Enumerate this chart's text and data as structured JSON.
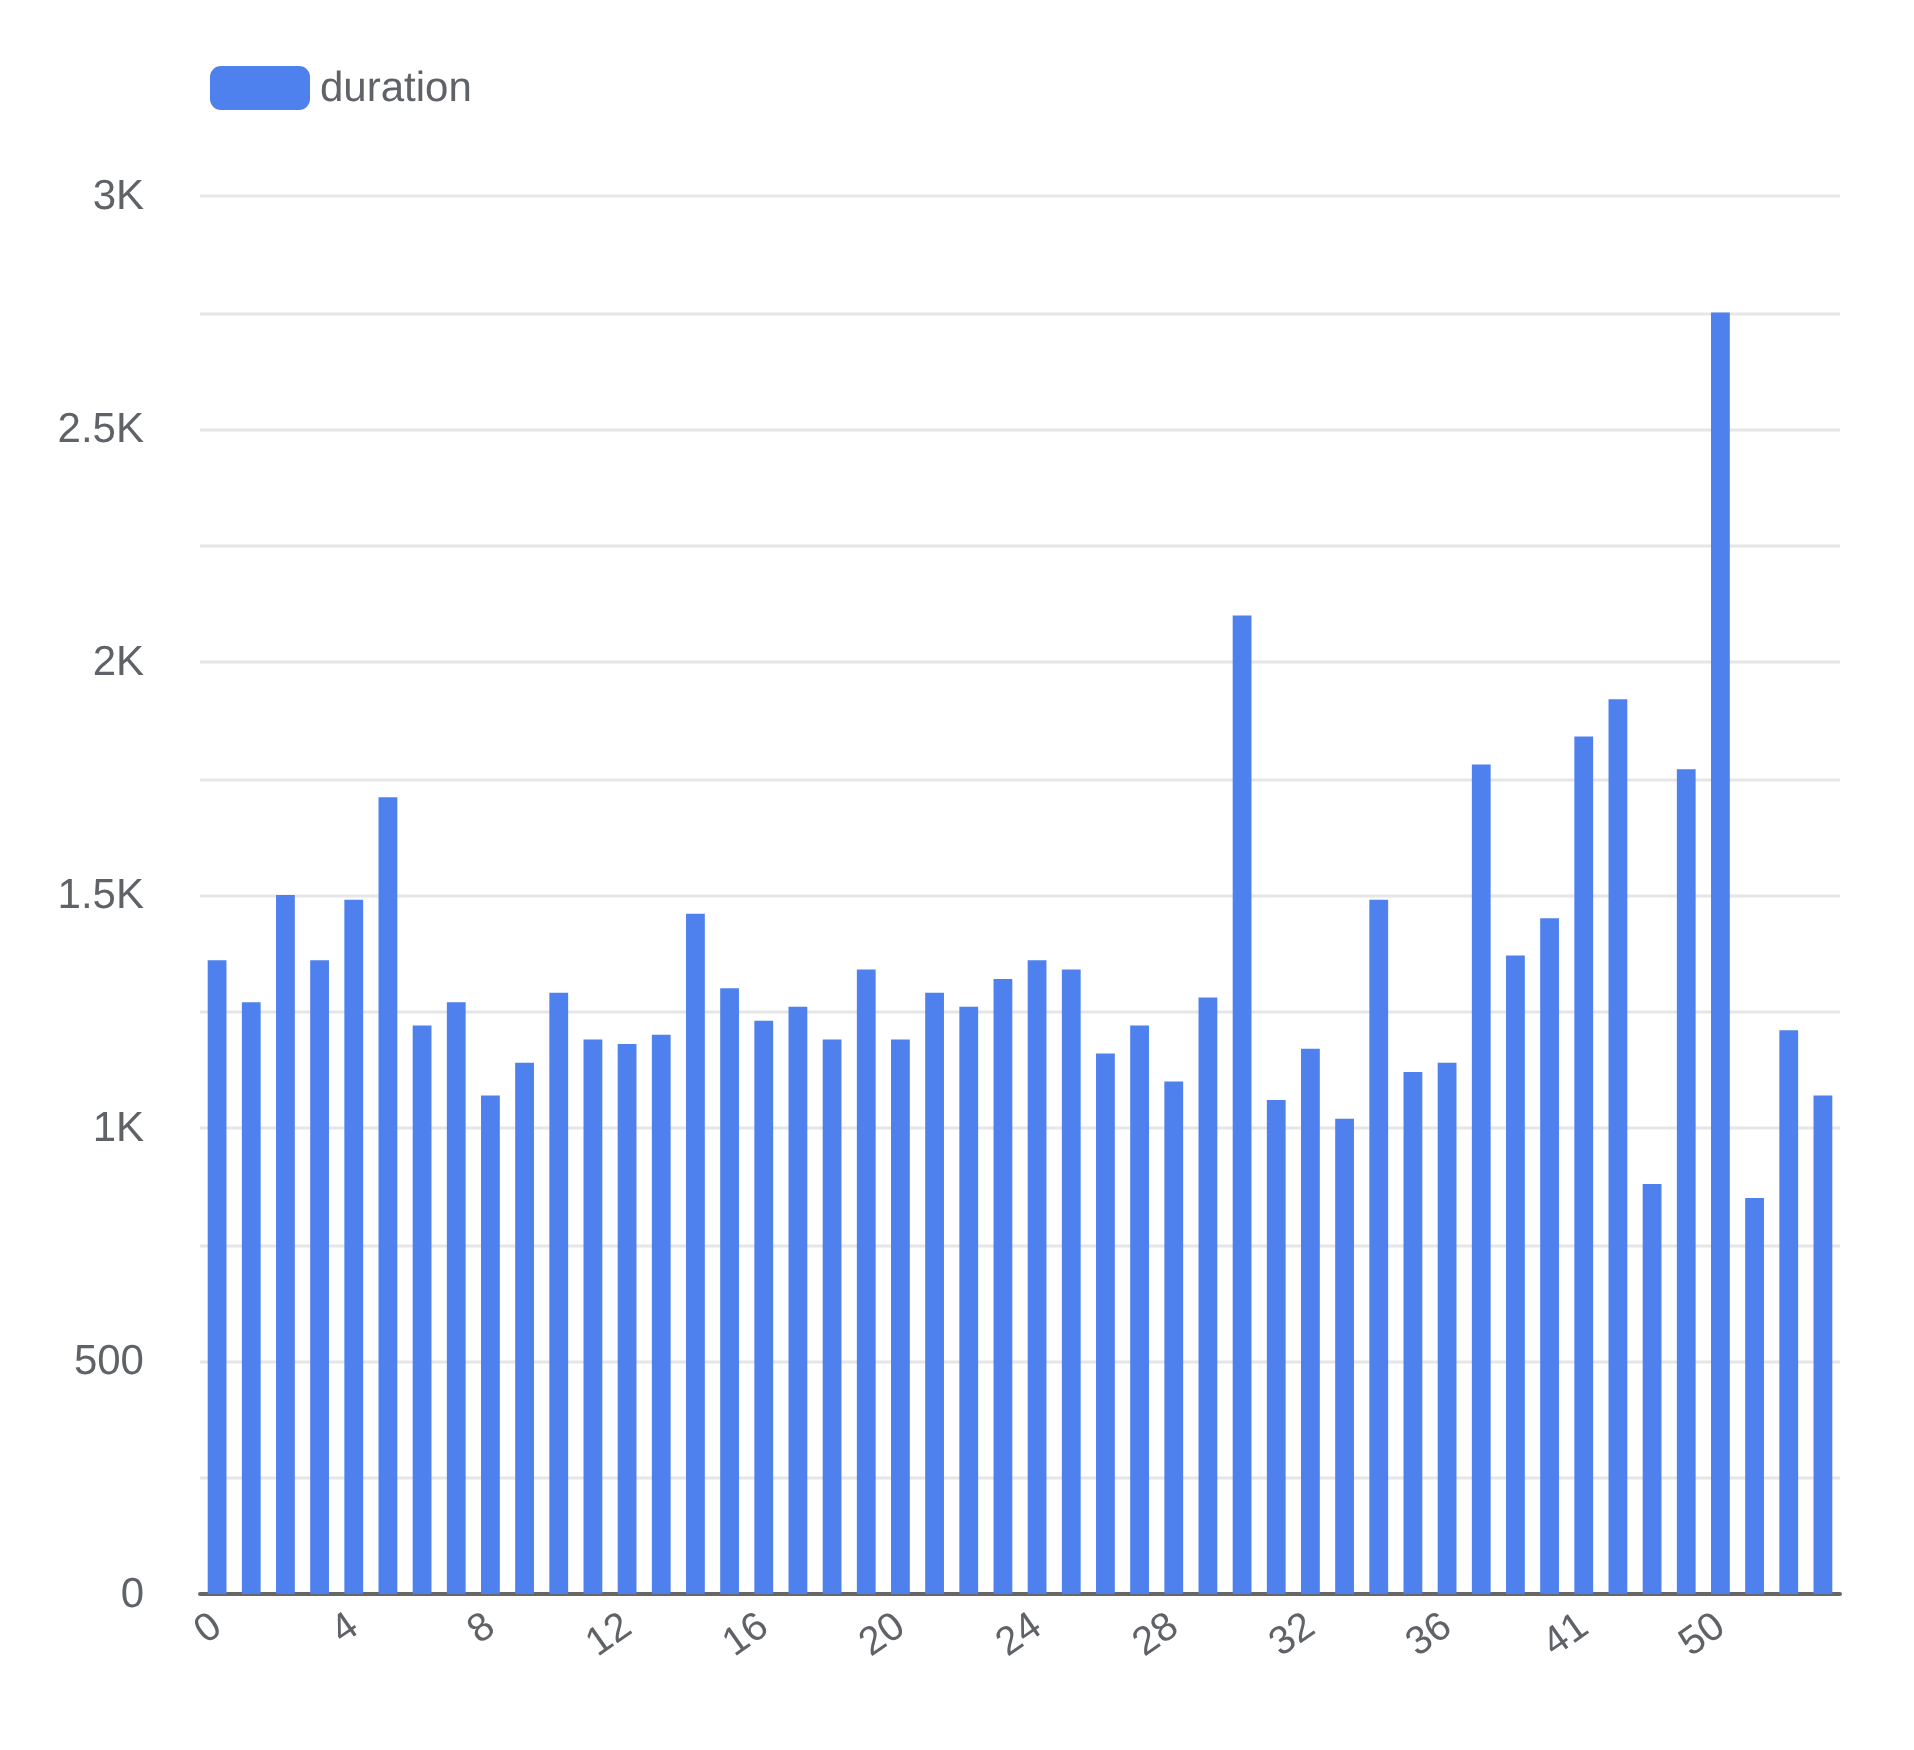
{
  "chart_data": {
    "type": "bar",
    "categories": [
      "0",
      null,
      null,
      null,
      "4",
      null,
      null,
      null,
      "8",
      null,
      null,
      null,
      "12",
      null,
      null,
      null,
      "16",
      null,
      null,
      null,
      "20",
      null,
      null,
      null,
      "24",
      null,
      null,
      null,
      "28",
      null,
      null,
      null,
      "32",
      null,
      null,
      null,
      "36",
      null,
      null,
      null,
      "41",
      null,
      null,
      null,
      "50",
      null,
      null,
      null
    ],
    "series": [
      {
        "name": "duration",
        "color": "#4e80ee",
        "values": [
          1360,
          1270,
          1500,
          1360,
          1490,
          1710,
          1220,
          1270,
          1070,
          1140,
          1290,
          1190,
          1180,
          1200,
          1460,
          1300,
          1230,
          1260,
          1190,
          1340,
          1190,
          1290,
          1260,
          1320,
          1360,
          1340,
          1160,
          1220,
          1100,
          1280,
          2100,
          1060,
          1170,
          1020,
          1490,
          1120,
          1140,
          1780,
          1370,
          1450,
          1840,
          1920,
          880,
          1770,
          2750,
          850,
          1210,
          1070
        ]
      }
    ],
    "ylim": [
      0,
      3000
    ],
    "yticks": [
      0,
      {
        "value": 250,
        "label": null
      },
      500,
      {
        "value": 750,
        "label": null
      },
      {
        "value": 1000,
        "label": "1K"
      },
      {
        "value": 1250,
        "label": null
      },
      {
        "value": 1500,
        "label": "1.5K"
      },
      {
        "value": 1750,
        "label": null
      },
      {
        "value": 2000,
        "label": "2K"
      },
      {
        "value": 2250,
        "label": null
      },
      {
        "value": 2500,
        "label": "2.5K"
      },
      {
        "value": 2750,
        "label": null
      },
      {
        "value": 3000,
        "label": "3K"
      }
    ],
    "grid": "y",
    "legend": "top left"
  }
}
